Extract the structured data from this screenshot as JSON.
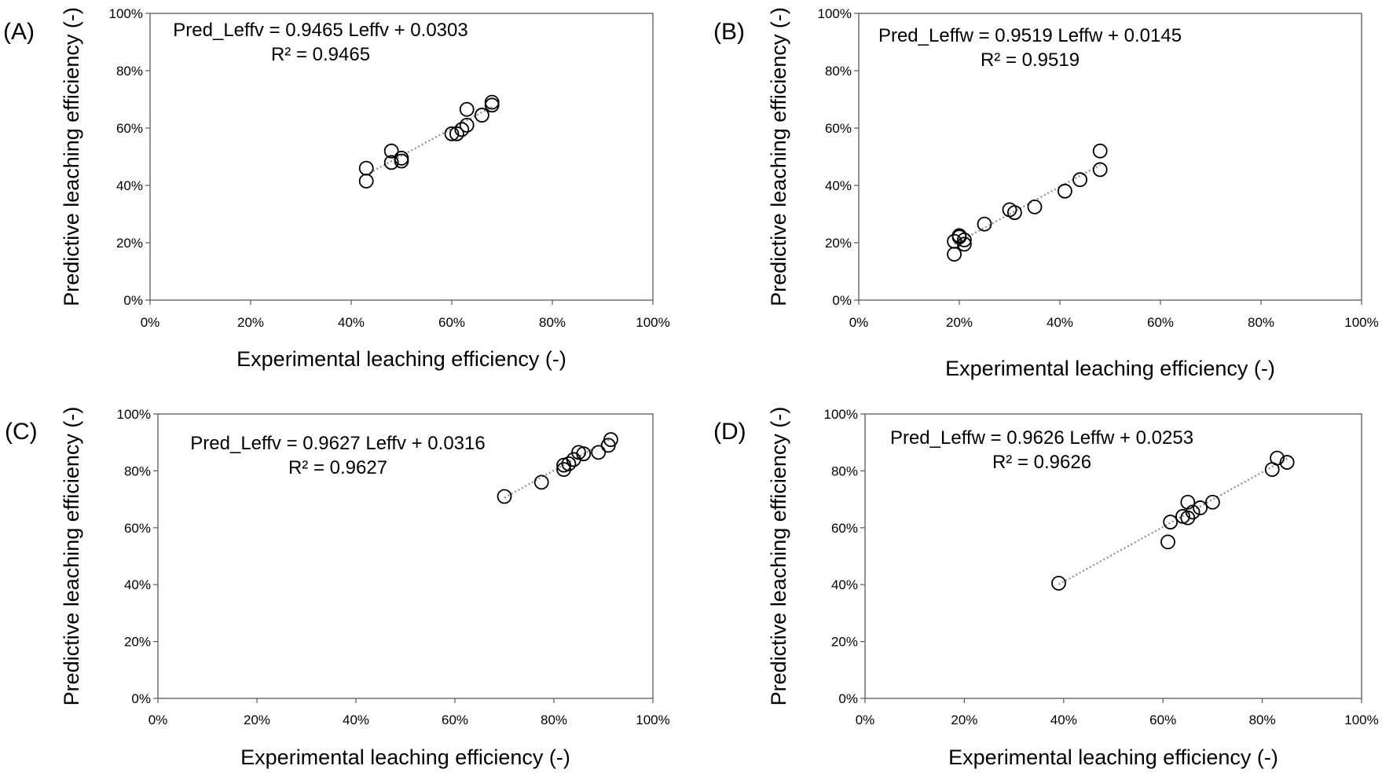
{
  "chart_data": [
    {
      "type": "scatter",
      "panel_label": "(A)",
      "xlabel": "Experimental leaching efficiency (-)",
      "ylabel": "Predictive leaching efficiency (-)",
      "xlim": [
        0,
        1
      ],
      "ylim": [
        0,
        1
      ],
      "xticks": [
        "0%",
        "20%",
        "40%",
        "60%",
        "80%",
        "100%"
      ],
      "yticks": [
        "0%",
        "20%",
        "40%",
        "60%",
        "80%",
        "100%"
      ],
      "grid": false,
      "trendline": {
        "slope": 0.9465,
        "intercept": 0.0303,
        "style": "dotted"
      },
      "equation": "Pred_Leffv = 0.9465 Leffv + 0.0303",
      "r2_text": "R² = 0.9465",
      "series": [
        {
          "x": [
            0.43,
            0.43,
            0.48,
            0.48,
            0.5,
            0.5,
            0.6,
            0.61,
            0.62,
            0.63,
            0.63,
            0.66,
            0.68,
            0.68
          ],
          "y": [
            0.46,
            0.415,
            0.52,
            0.48,
            0.495,
            0.485,
            0.58,
            0.58,
            0.595,
            0.61,
            0.665,
            0.645,
            0.69,
            0.68
          ]
        }
      ]
    },
    {
      "type": "scatter",
      "panel_label": "(B)",
      "xlabel": "Experimental leaching efficiency (-)",
      "ylabel": "Predictive leaching efficiency (-)",
      "xlim": [
        0,
        1
      ],
      "ylim": [
        0,
        1
      ],
      "xticks": [
        "0%",
        "20%",
        "40%",
        "60%",
        "80%",
        "100%"
      ],
      "yticks": [
        "0%",
        "20%",
        "40%",
        "60%",
        "80%",
        "100%"
      ],
      "grid": false,
      "trendline": {
        "slope": 0.9519,
        "intercept": 0.0145,
        "style": "dotted"
      },
      "equation": "Pred_Leffw = 0.9519 Leffw + 0.0145",
      "r2_text": "R² = 0.9519",
      "series": [
        {
          "x": [
            0.19,
            0.19,
            0.2,
            0.2,
            0.21,
            0.21,
            0.25,
            0.3,
            0.31,
            0.35,
            0.41,
            0.44,
            0.48,
            0.48
          ],
          "y": [
            0.16,
            0.205,
            0.225,
            0.22,
            0.21,
            0.195,
            0.265,
            0.315,
            0.305,
            0.325,
            0.38,
            0.42,
            0.52,
            0.455
          ]
        }
      ]
    },
    {
      "type": "scatter",
      "panel_label": "(C)",
      "xlabel": "Experimental leaching efficiency (-)",
      "ylabel": "Predictive leaching efficiency (-)",
      "xlim": [
        0,
        1
      ],
      "ylim": [
        0,
        1
      ],
      "xticks": [
        "0%",
        "20%",
        "40%",
        "60%",
        "80%",
        "100%"
      ],
      "yticks": [
        "0%",
        "20%",
        "40%",
        "60%",
        "80%",
        "100%"
      ],
      "grid": false,
      "trendline": {
        "slope": 0.9627,
        "intercept": 0.0316,
        "style": "dotted"
      },
      "equation": "Pred_Leffv = 0.9627 Leffv + 0.0316",
      "r2_text": "R² = 0.9627",
      "series": [
        {
          "x": [
            0.7,
            0.775,
            0.82,
            0.82,
            0.83,
            0.84,
            0.85,
            0.86,
            0.89,
            0.91,
            0.915
          ],
          "y": [
            0.71,
            0.76,
            0.805,
            0.82,
            0.825,
            0.84,
            0.865,
            0.86,
            0.865,
            0.89,
            0.91
          ]
        }
      ]
    },
    {
      "type": "scatter",
      "panel_label": "(D)",
      "xlabel": "Experimental leaching efficiency (-)",
      "ylabel": "Predictive leaching efficiency (-)",
      "xlim": [
        0,
        1
      ],
      "ylim": [
        0,
        1
      ],
      "xticks": [
        "0%",
        "20%",
        "40%",
        "60%",
        "80%",
        "100%"
      ],
      "yticks": [
        "0%",
        "20%",
        "40%",
        "60%",
        "80%",
        "100%"
      ],
      "grid": false,
      "trendline": {
        "slope": 0.9626,
        "intercept": 0.0253,
        "style": "dotted"
      },
      "equation": "Pred_Leffw = 0.9626 Leffw + 0.0253",
      "r2_text": "R² = 0.9626",
      "series": [
        {
          "x": [
            0.39,
            0.61,
            0.615,
            0.64,
            0.65,
            0.65,
            0.66,
            0.675,
            0.7,
            0.82,
            0.83,
            0.85
          ],
          "y": [
            0.405,
            0.55,
            0.62,
            0.64,
            0.69,
            0.635,
            0.655,
            0.67,
            0.69,
            0.805,
            0.845,
            0.83
          ]
        }
      ]
    }
  ]
}
